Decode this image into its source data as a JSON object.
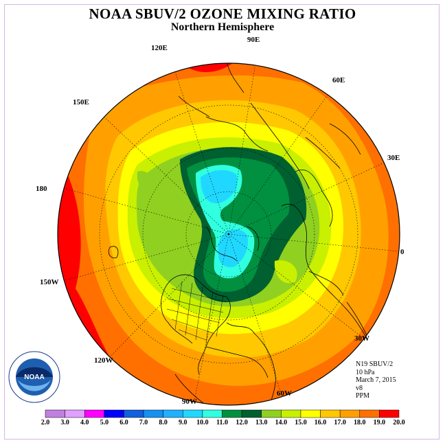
{
  "title": "NOAA SBUV/2 OZONE MIXING RATIO",
  "subtitle": "Northern Hemisphere",
  "longitude_labels": {
    "e90": "90E",
    "e60": "60E",
    "e30": "30E",
    "zero": "0",
    "w30": "30W",
    "w60": "60W",
    "w90": "90W",
    "w120": "120W",
    "w150": "150W",
    "d180": "180",
    "e150": "150E",
    "e120": "120E"
  },
  "info": {
    "instrument": "N19 SBUV/2",
    "pressure": "10 hPa",
    "date": "March 7, 2015",
    "version": "v8",
    "units": "PPM"
  },
  "logo": {
    "text": "NOAA",
    "ring_text": "NATIONAL OCEANIC AND ATMOSPHERIC ADMINISTRATION · U.S. DEPARTMENT OF COMMERCE"
  },
  "colors": {
    "c2": "#c080e0",
    "c3": "#e0a0ff",
    "c4": "#ff00ff",
    "c5": "#0000ff",
    "c6": "#1060e0",
    "c7": "#1890f0",
    "c8": "#20b0ff",
    "c9": "#20d8ff",
    "c10": "#30ffe0",
    "c11": "#009040",
    "c12": "#006030",
    "c13": "#90d020",
    "c14": "#c8f000",
    "c15": "#ffff00",
    "c16": "#ffc800",
    "c17": "#ffa000",
    "c18": "#ff7000",
    "c19": "#ff0000",
    "c20": "#a06040"
  },
  "colorbar": {
    "ticks": [
      "2.0",
      "3.0",
      "4.0",
      "5.0",
      "6.0",
      "7.0",
      "8.0",
      "9.0",
      "10.0",
      "11.0",
      "12.0",
      "13.0",
      "14.0",
      "15.0",
      "16.0",
      "17.0",
      "18.0",
      "19.0",
      "20.0"
    ]
  }
}
